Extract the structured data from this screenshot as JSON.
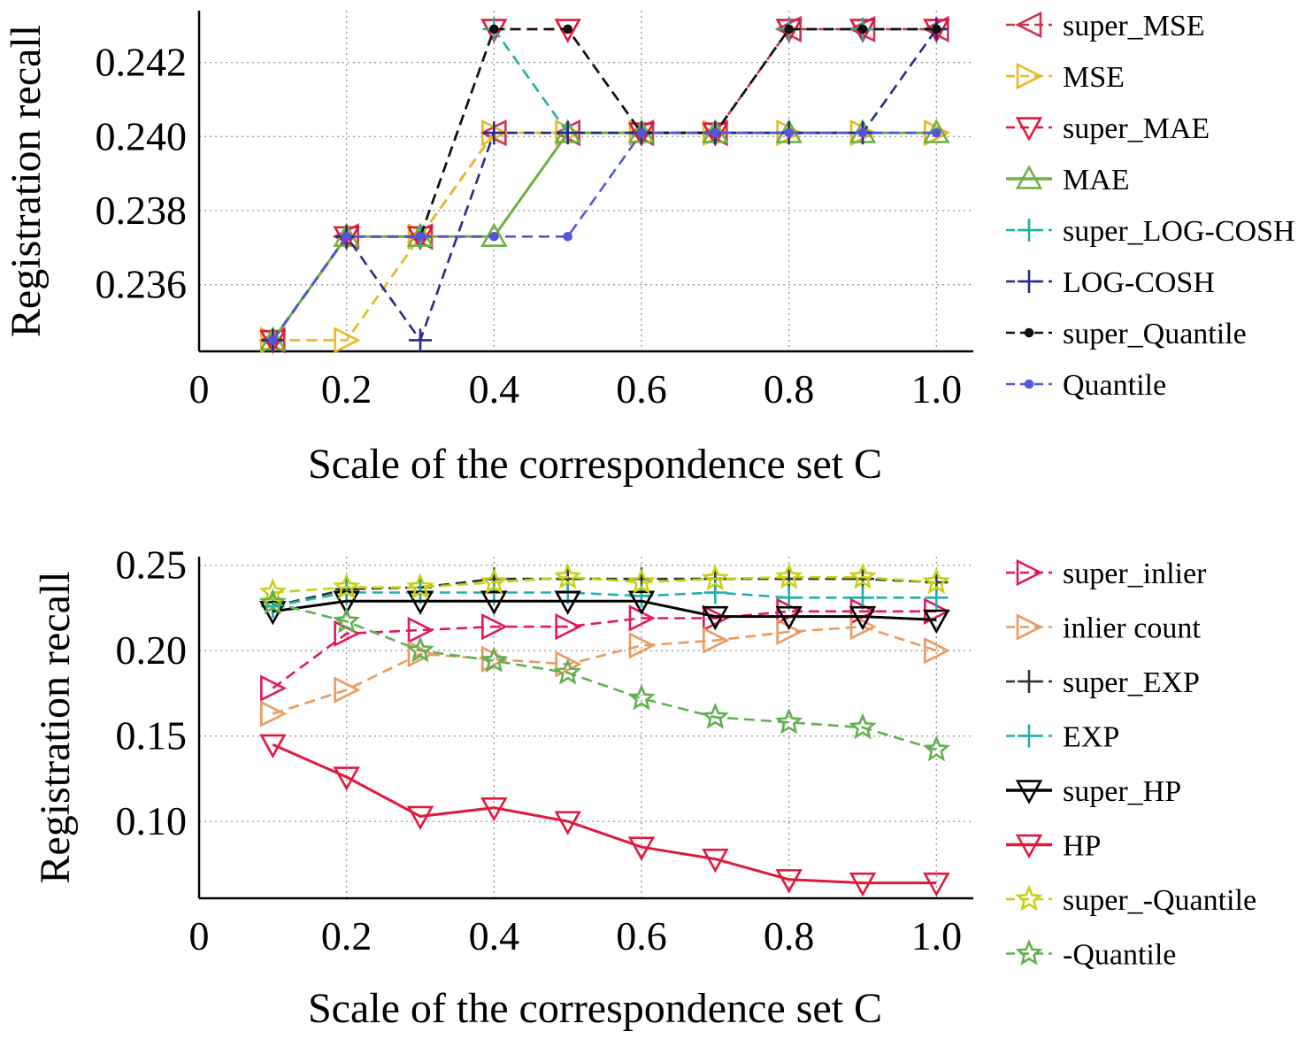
{
  "chart_data": [
    {
      "type": "line",
      "xlabel": "Scale of the correspondence set C",
      "ylabel": "Registration recall",
      "xlim": [
        0,
        1.05
      ],
      "ylim": [
        0.2342,
        0.2434
      ],
      "x_ticks": [
        "0",
        "0.2",
        "0.4",
        "0.6",
        "0.8",
        "1.0"
      ],
      "x_tick_values": [
        0,
        0.2,
        0.4,
        0.6,
        0.8,
        1.0
      ],
      "y_ticks": [
        "0.236",
        "0.238",
        "0.240",
        "0.242"
      ],
      "y_tick_values": [
        0.236,
        0.238,
        0.24,
        0.242
      ],
      "grid": true,
      "legend_position": "right",
      "x": [
        0.1,
        0.2,
        0.3,
        0.4,
        0.5,
        0.6,
        0.7,
        0.8,
        0.9,
        1.0
      ],
      "series": [
        {
          "name": "super_MSE",
          "color": "#cc3355",
          "marker": "triangle-left",
          "dash": "dashed",
          "values": [
            0.2345,
            0.2373,
            0.2373,
            0.2401,
            0.2401,
            0.2401,
            0.2401,
            0.2429,
            0.2429,
            0.2429
          ]
        },
        {
          "name": "MSE",
          "color": "#e8b820",
          "marker": "triangle-right",
          "dash": "dashed",
          "values": [
            0.2345,
            0.2345,
            0.2373,
            0.2401,
            0.2401,
            0.2401,
            0.2401,
            0.2401,
            0.2401,
            0.2401
          ]
        },
        {
          "name": "super_MAE",
          "color": "#e0193c",
          "marker": "triangle-down",
          "dash": "dashed",
          "values": [
            0.2345,
            0.2373,
            0.2373,
            0.2429,
            0.2429,
            0.2401,
            0.2401,
            0.2429,
            0.2429,
            0.2429
          ]
        },
        {
          "name": "MAE",
          "color": "#70b040",
          "marker": "triangle-up",
          "dash": "solid",
          "values": [
            0.2345,
            0.2373,
            0.2373,
            0.2373,
            0.2401,
            0.2401,
            0.2401,
            0.2401,
            0.2401,
            0.2401
          ]
        },
        {
          "name": "super_LOG-COSH",
          "color": "#1fb0a0",
          "marker": "plus",
          "dash": "dashed",
          "values": [
            0.2345,
            0.2373,
            0.2373,
            0.2429,
            0.2401,
            0.2401,
            0.2401,
            0.2429,
            0.2429,
            0.2429
          ]
        },
        {
          "name": "LOG-COSH",
          "color": "#2a2a8a",
          "marker": "plus",
          "dash": "dashed",
          "values": [
            0.2345,
            0.2373,
            0.2345,
            0.2401,
            0.2401,
            0.2401,
            0.2401,
            0.2401,
            0.2401,
            0.2429
          ]
        },
        {
          "name": "super_Quantile",
          "color": "#111111",
          "marker": "dot",
          "dash": "dashed",
          "values": [
            0.2345,
            0.2373,
            0.2373,
            0.2429,
            0.2429,
            0.2401,
            0.2401,
            0.2429,
            0.2429,
            0.2429
          ]
        },
        {
          "name": "Quantile",
          "color": "#5555dd",
          "marker": "dot",
          "dash": "dashed",
          "values": [
            0.2345,
            0.2373,
            0.2373,
            0.2373,
            0.2373,
            0.2401,
            0.2401,
            0.2401,
            0.2401,
            0.2401
          ]
        }
      ]
    },
    {
      "type": "line",
      "xlabel": "Scale of the correspondence set C",
      "ylabel": "Registration recall",
      "xlim": [
        0,
        1.05
      ],
      "ylim": [
        0.055,
        0.255
      ],
      "x_ticks": [
        "0",
        "0.2",
        "0.4",
        "0.6",
        "0.8",
        "1.0"
      ],
      "x_tick_values": [
        0,
        0.2,
        0.4,
        0.6,
        0.8,
        1.0
      ],
      "y_ticks": [
        "0.10",
        "0.15",
        "0.20",
        "0.25"
      ],
      "y_tick_values": [
        0.1,
        0.15,
        0.2,
        0.25
      ],
      "grid": true,
      "legend_position": "right",
      "x": [
        0.1,
        0.2,
        0.3,
        0.4,
        0.5,
        0.6,
        0.7,
        0.8,
        0.9,
        1.0
      ],
      "series": [
        {
          "name": "super_inlier",
          "color": "#e0195a",
          "marker": "triangle-right",
          "dash": "dashed",
          "values": [
            0.178,
            0.21,
            0.212,
            0.214,
            0.214,
            0.219,
            0.219,
            0.223,
            0.223,
            0.223
          ]
        },
        {
          "name": "inlier count",
          "color": "#e89a60",
          "marker": "triangle-right",
          "dash": "dashed",
          "values": [
            0.163,
            0.177,
            0.198,
            0.195,
            0.192,
            0.203,
            0.206,
            0.211,
            0.214,
            0.2
          ]
        },
        {
          "name": "super_EXP",
          "color": "#333333",
          "marker": "plus",
          "dash": "dashed",
          "values": [
            0.226,
            0.236,
            0.237,
            0.242,
            0.242,
            0.242,
            0.242,
            0.242,
            0.242,
            0.24
          ]
        },
        {
          "name": "EXP",
          "color": "#20b0b0",
          "marker": "plus",
          "dash": "dashed",
          "values": [
            0.226,
            0.234,
            0.234,
            0.234,
            0.234,
            0.232,
            0.234,
            0.231,
            0.231,
            0.231
          ]
        },
        {
          "name": "super_HP",
          "color": "#000000",
          "marker": "triangle-down",
          "dash": "solid",
          "values": [
            0.223,
            0.229,
            0.229,
            0.229,
            0.229,
            0.229,
            0.22,
            0.22,
            0.22,
            0.218
          ]
        },
        {
          "name": "HP",
          "color": "#e0193c",
          "marker": "triangle-down",
          "dash": "solid",
          "values": [
            0.145,
            0.126,
            0.103,
            0.108,
            0.1,
            0.085,
            0.078,
            0.066,
            0.064,
            0.064
          ]
        },
        {
          "name": "super_-Quantile",
          "color": "#c8d010",
          "marker": "star",
          "dash": "dashed",
          "values": [
            0.234,
            0.237,
            0.237,
            0.24,
            0.243,
            0.24,
            0.242,
            0.243,
            0.243,
            0.24
          ]
        },
        {
          "name": "-Quantile",
          "color": "#60b050",
          "marker": "star",
          "dash": "dashed",
          "values": [
            0.228,
            0.217,
            0.2,
            0.194,
            0.187,
            0.172,
            0.161,
            0.158,
            0.155,
            0.142
          ]
        }
      ]
    }
  ]
}
